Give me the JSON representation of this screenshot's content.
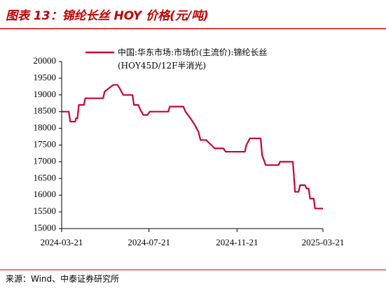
{
  "chart_data": {
    "type": "line",
    "title": "图表 13：锦纶长丝 HOY 价格(元/吨)",
    "source": "来源：Wind、中泰证券研究所",
    "x": [
      "2024-03-21",
      "2024-03-31",
      "2024-04-02",
      "2024-04-09",
      "2024-04-10",
      "2024-04-12",
      "2024-04-14",
      "2024-04-21",
      "2024-04-23",
      "2024-05-18",
      "2024-05-20",
      "2024-05-26",
      "2024-06-01",
      "2024-06-07",
      "2024-06-10",
      "2024-06-15",
      "2024-06-28",
      "2024-06-30",
      "2024-07-06",
      "2024-07-08",
      "2024-07-13",
      "2024-07-19",
      "2024-07-22",
      "2024-08-17",
      "2024-08-19",
      "2024-09-07",
      "2024-09-10",
      "2024-09-17",
      "2024-09-23",
      "2024-09-28",
      "2024-10-01",
      "2024-10-09",
      "2024-10-11",
      "2024-10-16",
      "2024-10-21",
      "2024-11-02",
      "2024-11-05",
      "2024-12-02",
      "2024-12-04",
      "2024-12-09",
      "2024-12-24",
      "2024-12-26",
      "2024-12-31",
      "2025-01-18",
      "2025-01-20",
      "2025-02-07",
      "2025-02-10",
      "2025-02-15",
      "2025-02-17",
      "2025-02-24",
      "2025-02-26",
      "2025-03-01",
      "2025-03-03",
      "2025-03-08",
      "2025-03-10",
      "2025-03-21"
    ],
    "series": [
      {
        "name": "中国:华东市场:市场价(主流价):锦纶长丝(HOY45D/12F半消光)",
        "color": "#c8003c",
        "values": [
          18500,
          18500,
          18200,
          18200,
          18300,
          18300,
          18700,
          18700,
          18900,
          18900,
          19100,
          19200,
          19300,
          19300,
          19200,
          19000,
          19000,
          18700,
          18700,
          18600,
          18400,
          18400,
          18500,
          18500,
          18650,
          18650,
          18500,
          18300,
          18100,
          17900,
          17650,
          17650,
          17600,
          17500,
          17400,
          17400,
          17300,
          17300,
          17500,
          17700,
          17700,
          17200,
          16900,
          16900,
          17000,
          17000,
          16100,
          16100,
          16300,
          16300,
          16200,
          16200,
          15900,
          15900,
          15600,
          15600
        ]
      }
    ],
    "xlim": [
      "2024-03-21",
      "2025-03-21"
    ],
    "xticks": [
      "2024-03-21",
      "2024-07-21",
      "2024-11-21",
      "2025-03-21"
    ],
    "ylim": [
      15000,
      20000
    ],
    "yticks": [
      15000,
      15500,
      16000,
      16500,
      17000,
      17500,
      18000,
      18500,
      19000,
      19500,
      20000
    ],
    "grid": false
  }
}
